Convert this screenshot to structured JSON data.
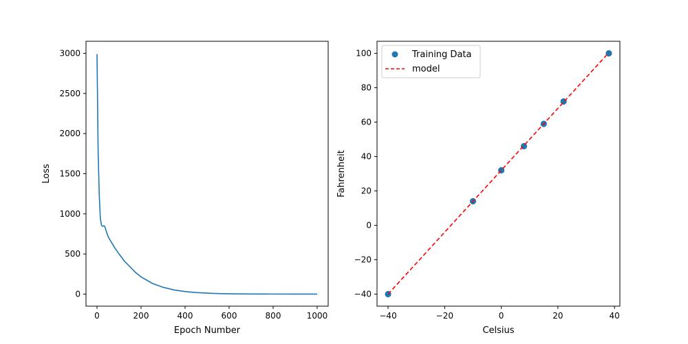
{
  "chart_data": [
    {
      "type": "line",
      "xlabel": "Epoch Number",
      "ylabel": "Loss",
      "xlim": [
        -50,
        1050
      ],
      "ylim": [
        -150,
        3150
      ],
      "xticks": [
        0,
        200,
        400,
        600,
        800,
        1000
      ],
      "yticks": [
        0,
        500,
        1000,
        1500,
        2000,
        2500,
        3000
      ],
      "grid": false,
      "series": [
        {
          "color": "#1f77b4",
          "x": [
            0,
            5,
            10,
            15,
            20,
            25,
            30,
            35,
            40,
            50,
            60,
            80,
            100,
            125,
            150,
            175,
            200,
            250,
            300,
            350,
            400,
            450,
            500,
            550,
            600,
            700,
            800,
            900,
            1000
          ],
          "y": [
            2990,
            1800,
            1250,
            950,
            860,
            845,
            850,
            845,
            800,
            720,
            670,
            580,
            500,
            410,
            340,
            270,
            215,
            135,
            85,
            52,
            32,
            20,
            12,
            7,
            4,
            2,
            1,
            0.5,
            0.3
          ]
        }
      ]
    },
    {
      "type": "scatter",
      "xlabel": "Celsius",
      "ylabel": "Fahrenheit",
      "xlim": [
        -43.9,
        41.9
      ],
      "ylim": [
        -47,
        107
      ],
      "xticks": [
        -40,
        -20,
        0,
        20,
        40
      ],
      "yticks": [
        -40,
        -20,
        0,
        20,
        40,
        60,
        80,
        100
      ],
      "grid": false,
      "legend": "top-left",
      "series": [
        {
          "name": "Training Data",
          "kind": "scatter",
          "color": "#1f77b4",
          "x": [
            -40,
            -10,
            0,
            8,
            15,
            22,
            38
          ],
          "y": [
            -40,
            14,
            32,
            46,
            59,
            72,
            100
          ]
        },
        {
          "name": "model",
          "kind": "line",
          "style": "dashed",
          "color": "#ff0000",
          "x": [
            -40,
            -10,
            0,
            8,
            15,
            22,
            38
          ],
          "y": [
            -40,
            14,
            32,
            46.4,
            59,
            71.6,
            100.4
          ]
        }
      ]
    }
  ]
}
